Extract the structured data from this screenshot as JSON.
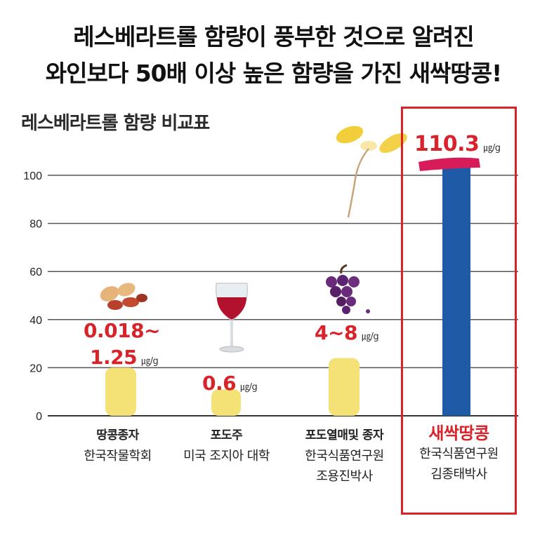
{
  "headline": {
    "line1": "레스베라트롤 함량이 풍부한 것으로 알려진",
    "line2": "와인보다 50배 이상 높은 함량을 가진 새싹땅콩!"
  },
  "chart_data": {
    "type": "bar",
    "title": "레스베라트롤 함량 비교표",
    "xlabel": "",
    "ylabel": "",
    "ylim": [
      0,
      100
    ],
    "yticks": [
      "0",
      "20",
      "40",
      "60",
      "80",
      "100"
    ],
    "unit": "㎍/g",
    "categories": [
      {
        "name": "땅콩종자",
        "source1": "한국작물학회",
        "source2": "",
        "label_line1": "0.018~",
        "label_line2": "1.25",
        "value": 20
      },
      {
        "name": "포도주",
        "source1": "미국 조지아 대학",
        "source2": "",
        "label_line1": "",
        "label_line2": "0.6",
        "value": 11
      },
      {
        "name": "포도열매및 종자",
        "source1": "한국식품연구원",
        "source2": "조용진박사",
        "label_line1": "",
        "label_line2": "4~8",
        "value": 24
      },
      {
        "name": "새싹땅콩",
        "source1": "한국식품연구원",
        "source2": "김종태박사",
        "label_line1": "",
        "label_line2": "110.3",
        "value": 104
      }
    ],
    "colors": {
      "bar": "#f4e276",
      "highlight_bar": "#1f5aa6",
      "label": "#d8232a"
    }
  }
}
